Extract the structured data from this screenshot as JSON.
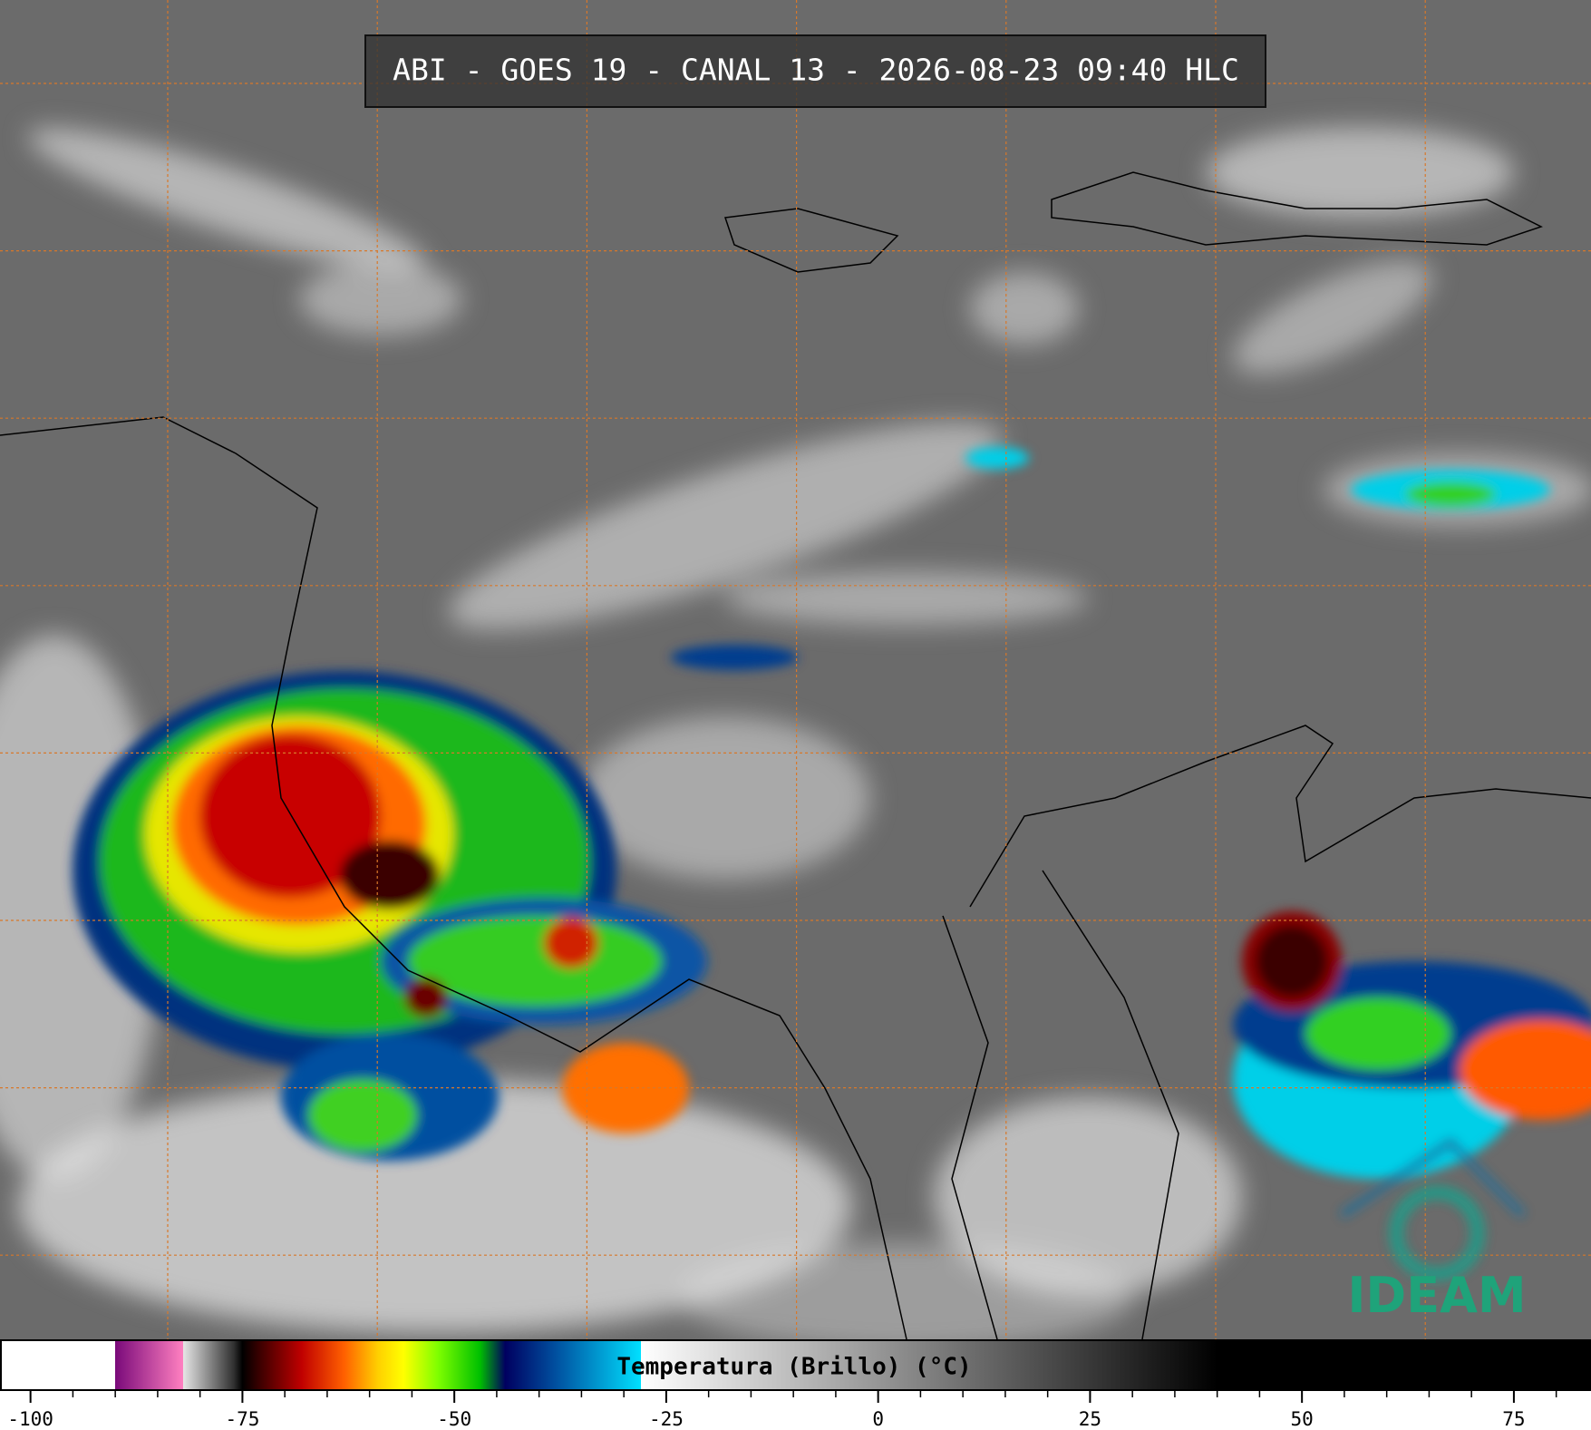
{
  "header": {
    "title": "ABI - GOES 19 - CANAL 13 - 2026-08-23 09:40 HLC"
  },
  "chart_data": {
    "type": "colorbar",
    "label": "Temperatura (Brillo) (°C)",
    "xlim": [
      -103.6,
      84.1
    ],
    "xticks": [
      -100,
      -75,
      -50,
      -25,
      0,
      25,
      50,
      75
    ],
    "colormap": [
      {
        "value": -103.6,
        "color": "#ffffff"
      },
      {
        "value": -90,
        "color": "#ffffff"
      },
      {
        "value": -90,
        "color": "#7a0a7a"
      },
      {
        "value": -82,
        "color": "#ff80c0"
      },
      {
        "value": -82,
        "color": "#e6e6e6"
      },
      {
        "value": -76,
        "color": "#303030"
      },
      {
        "value": -75,
        "color": "#000000"
      },
      {
        "value": -73,
        "color": "#3a0000"
      },
      {
        "value": -68,
        "color": "#c00000"
      },
      {
        "value": -63,
        "color": "#ff6000"
      },
      {
        "value": -59,
        "color": "#ffd000"
      },
      {
        "value": -56,
        "color": "#ffff00"
      },
      {
        "value": -52,
        "color": "#80ff00"
      },
      {
        "value": -47,
        "color": "#00c000"
      },
      {
        "value": -44,
        "color": "#000060"
      },
      {
        "value": -38,
        "color": "#0050a0"
      },
      {
        "value": -28,
        "color": "#00e0ff"
      },
      {
        "value": -28,
        "color": "#ffffff"
      },
      {
        "value": 40,
        "color": "#000000"
      },
      {
        "value": 84.1,
        "color": "#000000"
      }
    ]
  },
  "logo": {
    "text": "IDEAM"
  }
}
